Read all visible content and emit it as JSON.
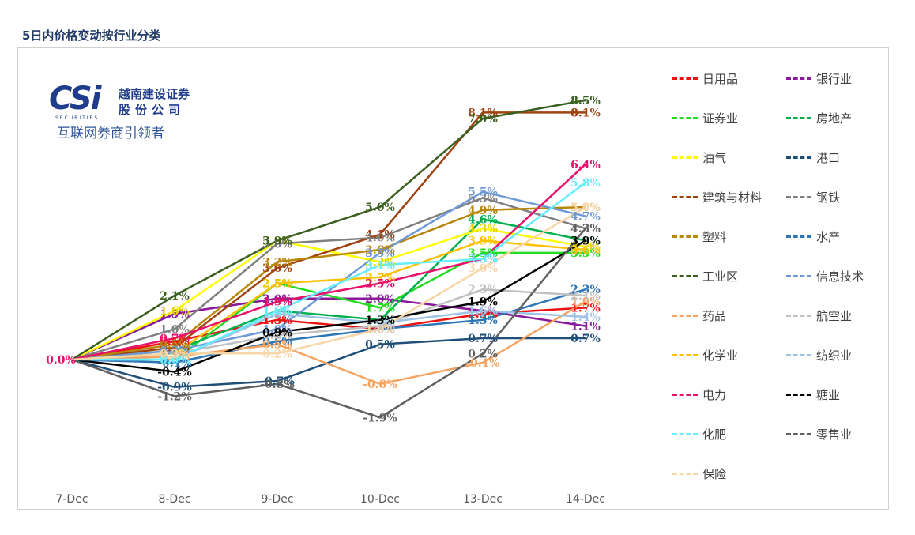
{
  "page": {
    "title": "5日内价格变动按行业分类"
  },
  "logo": {
    "mark": "CSi",
    "name_line1": "越南建设证券",
    "name_line2": "股份公司",
    "sub": "SECURITIES",
    "tagline": "互联网券商引领者"
  },
  "chart_data": {
    "type": "line",
    "categories": [
      "7-Dec",
      "8-Dec",
      "9-Dec",
      "10-Dec",
      "13-Dec",
      "14-Dec"
    ],
    "unit": "%",
    "series": [
      {
        "name": "日用品",
        "color": "#ee1111",
        "values": [
          0.0,
          0.6,
          1.3,
          1.0,
          1.5,
          1.7
        ]
      },
      {
        "name": "银行业",
        "color": "#8a1a9b",
        "values": [
          0.0,
          1.5,
          2.0,
          2.0,
          1.6,
          1.1
        ]
      },
      {
        "name": "证券业",
        "color": "#22dd22",
        "values": [
          0.0,
          0.0,
          2.5,
          1.7,
          3.5,
          3.5
        ]
      },
      {
        "name": "房地产",
        "color": "#00b050",
        "values": [
          0.0,
          0.3,
          1.6,
          1.3,
          4.6,
          3.9
        ]
      },
      {
        "name": "油气",
        "color": "#ffff00",
        "values": [
          0.0,
          1.6,
          3.9,
          3.2,
          4.3,
          3.7
        ]
      },
      {
        "name": "港口",
        "color": "#1f4e79",
        "values": [
          0.0,
          -0.9,
          -0.7,
          0.5,
          0.7,
          0.7
        ]
      },
      {
        "name": "建筑与材料",
        "color": "#a0420f",
        "values": [
          0.0,
          0.4,
          3.0,
          4.1,
          8.1,
          8.1
        ]
      },
      {
        "name": "钢铁",
        "color": "#808080",
        "values": [
          0.0,
          1.0,
          3.8,
          4.0,
          5.3,
          4.3
        ]
      },
      {
        "name": "塑料",
        "color": "#b8860b",
        "values": [
          0.0,
          0.5,
          3.2,
          3.6,
          4.9,
          5.0
        ]
      },
      {
        "name": "水产",
        "color": "#2e75b6",
        "values": [
          0.0,
          -0.1,
          0.6,
          1.0,
          1.3,
          2.3
        ]
      },
      {
        "name": "工业区",
        "color": "#3a5f1f",
        "values": [
          0.0,
          2.1,
          3.9,
          5.0,
          7.9,
          8.5
        ]
      },
      {
        "name": "信息技术",
        "color": "#6f9ad6",
        "values": [
          0.0,
          0.3,
          1.0,
          3.5,
          5.5,
          4.7
        ]
      },
      {
        "name": "药品",
        "color": "#f4a460",
        "values": [
          0.0,
          0.1,
          0.5,
          -0.8,
          -0.1,
          1.9
        ]
      },
      {
        "name": "航空业",
        "color": "#c0c0c0",
        "values": [
          0.0,
          0.2,
          0.8,
          1.1,
          2.3,
          2.1
        ]
      },
      {
        "name": "化学业",
        "color": "#ffc000",
        "values": [
          0.0,
          0.2,
          2.5,
          2.7,
          3.9,
          3.6
        ]
      },
      {
        "name": "纺织业",
        "color": "#9dc3e6",
        "values": [
          0.0,
          0.0,
          1.5,
          1.2,
          1.6,
          1.4
        ]
      },
      {
        "name": "电力",
        "color": "#e8106a",
        "values": [
          0.0,
          0.7,
          1.9,
          2.5,
          3.3,
          6.4
        ]
      },
      {
        "name": "糖业",
        "color": "#000000",
        "values": [
          0.0,
          -0.4,
          0.9,
          1.3,
          1.9,
          3.9
        ]
      },
      {
        "name": "化肥",
        "color": "#66eeff",
        "values": [
          0.0,
          0.0,
          1.6,
          3.1,
          3.3,
          5.8
        ]
      },
      {
        "name": "零售业",
        "color": "#606060",
        "values": [
          0.0,
          -1.2,
          -0.8,
          -1.9,
          0.2,
          4.3
        ]
      },
      {
        "name": "保险",
        "color": "#f8d6a8",
        "values": [
          0.0,
          0.2,
          0.2,
          1.0,
          3.0,
          5.0
        ]
      }
    ],
    "start_label": "0.0%",
    "ylim": [
      -2.5,
      9.0
    ]
  }
}
